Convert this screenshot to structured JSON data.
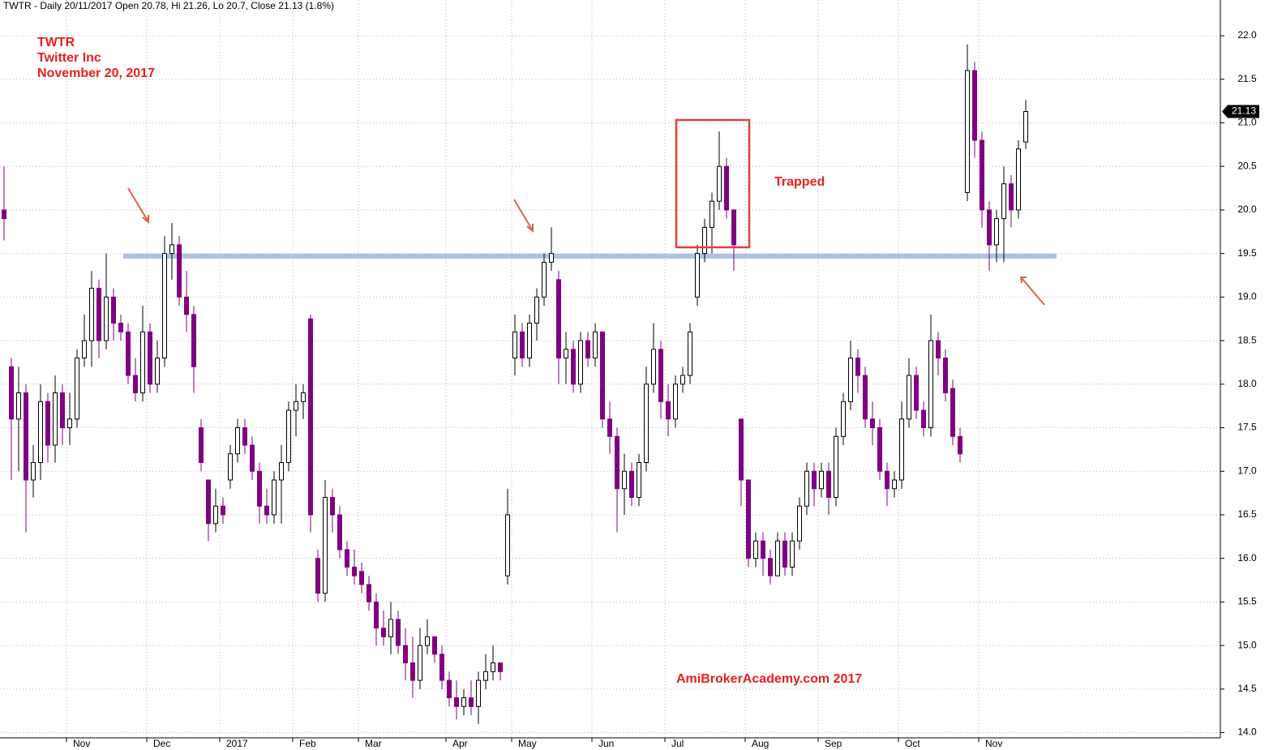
{
  "chart_data": {
    "type": "candlestick",
    "title": "TWTR - Daily 20/11/2017 Open 20.78, Hi 21.26, Lo 20.7, Close 21.13 (1.8%)",
    "annotations": [
      "TWTR",
      "Twitter Inc",
      "November 20, 2017",
      "Trapped",
      "AmiBrokerAcademy.com  2017"
    ],
    "up_color": "#ffffff",
    "down_color": "#800080",
    "support_level": 19.47,
    "support_color": "#9fb8e0",
    "ylim": [
      13.94,
      22.41
    ],
    "yticks": [
      {
        "value": 14,
        "label": "14.0"
      },
      {
        "value": 14.5,
        "label": "14.5"
      },
      {
        "value": 15,
        "label": "15.0"
      },
      {
        "value": 15.5,
        "label": "15.5"
      },
      {
        "value": 16,
        "label": "16.0"
      },
      {
        "value": 16.5,
        "label": "16.5"
      },
      {
        "value": 17,
        "label": "17.0"
      },
      {
        "value": 17.5,
        "label": "17.5"
      },
      {
        "value": 18,
        "label": "18.0"
      },
      {
        "value": 18.5,
        "label": "18.5"
      },
      {
        "value": 19,
        "label": "19.0"
      },
      {
        "value": 19.5,
        "label": "19.5"
      },
      {
        "value": 20,
        "label": "20.0"
      },
      {
        "value": 20.5,
        "label": "20.5"
      },
      {
        "value": 21,
        "label": "21.0"
      },
      {
        "value": 21.5,
        "label": "21.5"
      },
      {
        "value": 22,
        "label": "22.0"
      }
    ],
    "grid": true,
    "categories": [
      null,
      null,
      null,
      null,
      null,
      null,
      null,
      null,
      null,
      "Nov",
      null,
      null,
      null,
      null,
      null,
      null,
      null,
      null,
      null,
      null,
      "Dec",
      null,
      null,
      null,
      null,
      null,
      null,
      null,
      null,
      null,
      "2017",
      null,
      null,
      null,
      null,
      null,
      null,
      null,
      null,
      null,
      "Feb",
      null,
      null,
      null,
      null,
      null,
      null,
      null,
      null,
      "Mar",
      null,
      null,
      null,
      null,
      null,
      null,
      null,
      null,
      null,
      null,
      null,
      "Apr",
      null,
      null,
      null,
      null,
      null,
      null,
      null,
      null,
      "May",
      null,
      null,
      null,
      null,
      null,
      null,
      null,
      null,
      null,
      null,
      "Jun",
      null,
      null,
      null,
      null,
      null,
      null,
      null,
      null,
      null,
      "Jul",
      null,
      null,
      null,
      null,
      null,
      null,
      null,
      null,
      null,
      null,
      "Aug",
      null,
      null,
      null,
      null,
      null,
      null,
      null,
      null,
      null,
      "Sep",
      null,
      null,
      null,
      null,
      null,
      null,
      null,
      null,
      null,
      null,
      "Oct",
      null,
      null,
      null,
      null,
      null,
      null,
      null,
      null,
      null,
      null,
      "Nov",
      null,
      null,
      null,
      null,
      null,
      null
    ],
    "open": [
      20.0,
      18.2,
      17.6,
      17.9,
      16.9,
      17.1,
      17.8,
      17.3,
      17.9,
      17.5,
      17.6,
      18.3,
      18.5,
      19.1,
      18.5,
      19.0,
      18.7,
      18.6,
      18.1,
      17.9,
      18.6,
      18.0,
      18.3,
      19.5,
      19.6,
      19.0,
      18.8,
      17.5,
      16.9,
      16.4,
      16.6,
      16.9,
      17.2,
      17.5,
      17.3,
      17.0,
      16.6,
      16.5,
      16.9,
      17.1,
      17.7,
      17.8,
      18.75,
      16.0,
      15.6,
      16.7,
      16.5,
      16.1,
      15.9,
      15.85,
      15.7,
      15.5,
      15.2,
      15.1,
      15.3,
      15.0,
      14.8,
      14.6,
      15.0,
      15.1,
      14.9,
      14.6,
      14.4,
      14.3,
      14.4,
      14.3,
      14.6,
      14.7,
      14.8,
      15.8,
      18.3,
      18.6,
      18.3,
      18.7,
      19.0,
      19.4,
      19.2,
      18.3,
      18.4,
      18.0,
      18.5,
      18.3,
      18.6,
      17.6,
      17.4,
      16.8,
      17.0,
      16.7,
      17.1,
      18.0,
      18.4,
      17.8,
      17.6,
      18.0,
      18.1,
      19.0,
      19.5,
      19.8,
      20.1,
      20.5,
      20.0,
      17.6,
      16.9,
      16.0,
      16.2,
      16.0,
      15.8,
      16.2,
      15.9,
      16.2,
      16.6,
      17.0,
      16.8,
      17.0,
      16.7,
      17.4,
      17.8,
      18.3,
      18.1,
      17.6,
      17.5,
      17.0,
      16.8,
      16.9,
      17.6,
      18.1,
      17.7,
      17.5,
      18.5,
      18.3,
      17.95,
      17.4,
      20.2,
      21.6,
      20.8,
      20.0,
      19.6,
      19.9,
      20.3,
      20.0,
      20.78
    ],
    "high": [
      20.5,
      18.3,
      18.2,
      18.0,
      17.3,
      18.0,
      17.9,
      18.1,
      18.0,
      17.9,
      18.4,
      18.8,
      19.3,
      19.2,
      19.5,
      19.1,
      18.8,
      18.7,
      18.3,
      18.9,
      18.7,
      18.5,
      19.7,
      19.85,
      19.7,
      19.3,
      18.9,
      17.6,
      16.9,
      16.8,
      16.7,
      17.3,
      17.6,
      17.6,
      17.4,
      17.1,
      16.8,
      17.0,
      17.3,
      17.8,
      18.0,
      18.0,
      18.8,
      16.1,
      16.9,
      16.8,
      16.6,
      16.2,
      16.1,
      15.95,
      15.8,
      15.6,
      15.4,
      15.5,
      15.4,
      15.2,
      15.1,
      15.2,
      15.3,
      15.1,
      15.0,
      14.7,
      14.6,
      14.5,
      14.6,
      14.7,
      14.9,
      15.0,
      14.8,
      16.8,
      18.8,
      18.7,
      18.8,
      19.1,
      19.5,
      19.8,
      19.3,
      18.6,
      18.5,
      18.6,
      18.6,
      18.7,
      18.6,
      17.8,
      17.5,
      17.2,
      17.1,
      17.2,
      18.2,
      18.7,
      18.5,
      18.0,
      18.1,
      18.2,
      18.7,
      19.6,
      19.9,
      20.2,
      20.9,
      20.6,
      20.0,
      17.6,
      16.9,
      16.3,
      16.3,
      16.1,
      16.3,
      16.3,
      16.3,
      16.7,
      17.1,
      17.1,
      17.1,
      17.1,
      17.5,
      17.9,
      18.5,
      18.4,
      18.2,
      17.8,
      17.6,
      17.1,
      17.0,
      17.8,
      18.3,
      18.2,
      17.8,
      18.8,
      18.6,
      18.4,
      18.05,
      17.5,
      21.9,
      21.7,
      20.9,
      20.1,
      20.0,
      20.5,
      20.4,
      20.8,
      21.26
    ],
    "low": [
      19.65,
      16.9,
      17.0,
      16.3,
      16.7,
      16.9,
      17.1,
      17.1,
      17.3,
      17.3,
      17.5,
      18.2,
      18.2,
      18.3,
      18.4,
      18.5,
      18.5,
      18.0,
      17.8,
      17.8,
      17.9,
      17.9,
      18.2,
      19.2,
      18.9,
      18.6,
      17.9,
      17.0,
      16.2,
      16.3,
      16.4,
      16.8,
      17.1,
      17.2,
      16.9,
      16.4,
      16.4,
      16.4,
      16.4,
      17.0,
      17.4,
      17.6,
      16.3,
      15.5,
      15.5,
      16.3,
      16.0,
      15.8,
      15.7,
      15.6,
      15.4,
      15.0,
      15.0,
      14.9,
      14.9,
      14.6,
      14.4,
      14.5,
      14.9,
      14.8,
      14.5,
      14.3,
      14.15,
      14.2,
      14.2,
      14.1,
      14.5,
      14.6,
      14.6,
      15.7,
      18.1,
      18.2,
      18.2,
      18.5,
      18.9,
      19.3,
      18.0,
      18.0,
      17.9,
      17.9,
      18.2,
      18.2,
      17.5,
      17.2,
      16.3,
      16.5,
      16.6,
      16.6,
      17.0,
      17.9,
      17.6,
      17.4,
      17.5,
      17.9,
      18.0,
      18.9,
      19.4,
      19.5,
      20.0,
      19.9,
      19.3,
      16.6,
      15.9,
      15.9,
      15.8,
      15.7,
      15.8,
      15.8,
      15.8,
      16.1,
      16.5,
      16.6,
      16.7,
      16.5,
      16.6,
      17.3,
      17.7,
      17.9,
      17.5,
      17.3,
      16.9,
      16.6,
      16.7,
      16.8,
      17.5,
      17.6,
      17.4,
      17.4,
      18.1,
      17.8,
      17.3,
      17.1,
      20.1,
      20.6,
      19.8,
      19.3,
      19.4,
      19.4,
      19.8,
      19.9,
      20.7
    ],
    "close": [
      19.9,
      17.6,
      17.9,
      16.9,
      17.1,
      17.8,
      17.3,
      17.9,
      17.5,
      17.6,
      18.3,
      18.5,
      19.1,
      18.5,
      19.0,
      18.7,
      18.6,
      18.1,
      17.9,
      18.6,
      18.0,
      18.3,
      19.5,
      19.6,
      19.0,
      18.8,
      18.2,
      17.1,
      16.4,
      16.6,
      16.5,
      17.2,
      17.5,
      17.3,
      17.0,
      16.6,
      16.5,
      16.9,
      17.1,
      17.7,
      17.8,
      17.9,
      16.5,
      15.6,
      16.7,
      16.5,
      16.1,
      15.9,
      15.8,
      15.7,
      15.5,
      15.2,
      15.1,
      15.3,
      15.0,
      14.8,
      14.6,
      15.0,
      15.1,
      14.9,
      14.6,
      14.4,
      14.3,
      14.4,
      14.3,
      14.6,
      14.7,
      14.8,
      14.7,
      16.5,
      18.6,
      18.3,
      18.7,
      19.0,
      19.4,
      19.5,
      18.3,
      18.4,
      18.0,
      18.5,
      18.3,
      18.6,
      17.6,
      17.4,
      16.8,
      17.0,
      16.7,
      17.1,
      18.0,
      18.4,
      17.8,
      17.6,
      18.0,
      18.1,
      18.6,
      19.5,
      19.8,
      20.1,
      20.5,
      20.0,
      19.6,
      16.9,
      16.0,
      16.2,
      16.0,
      15.8,
      16.2,
      15.9,
      16.2,
      16.6,
      17.0,
      16.8,
      17.0,
      16.7,
      17.4,
      17.8,
      18.3,
      18.1,
      17.6,
      17.5,
      17.0,
      16.8,
      16.9,
      17.6,
      18.1,
      17.7,
      17.5,
      18.5,
      18.3,
      17.9,
      17.4,
      17.2,
      21.6,
      20.8,
      20.0,
      19.6,
      19.9,
      20.3,
      20.0,
      20.7,
      21.13
    ]
  }
}
